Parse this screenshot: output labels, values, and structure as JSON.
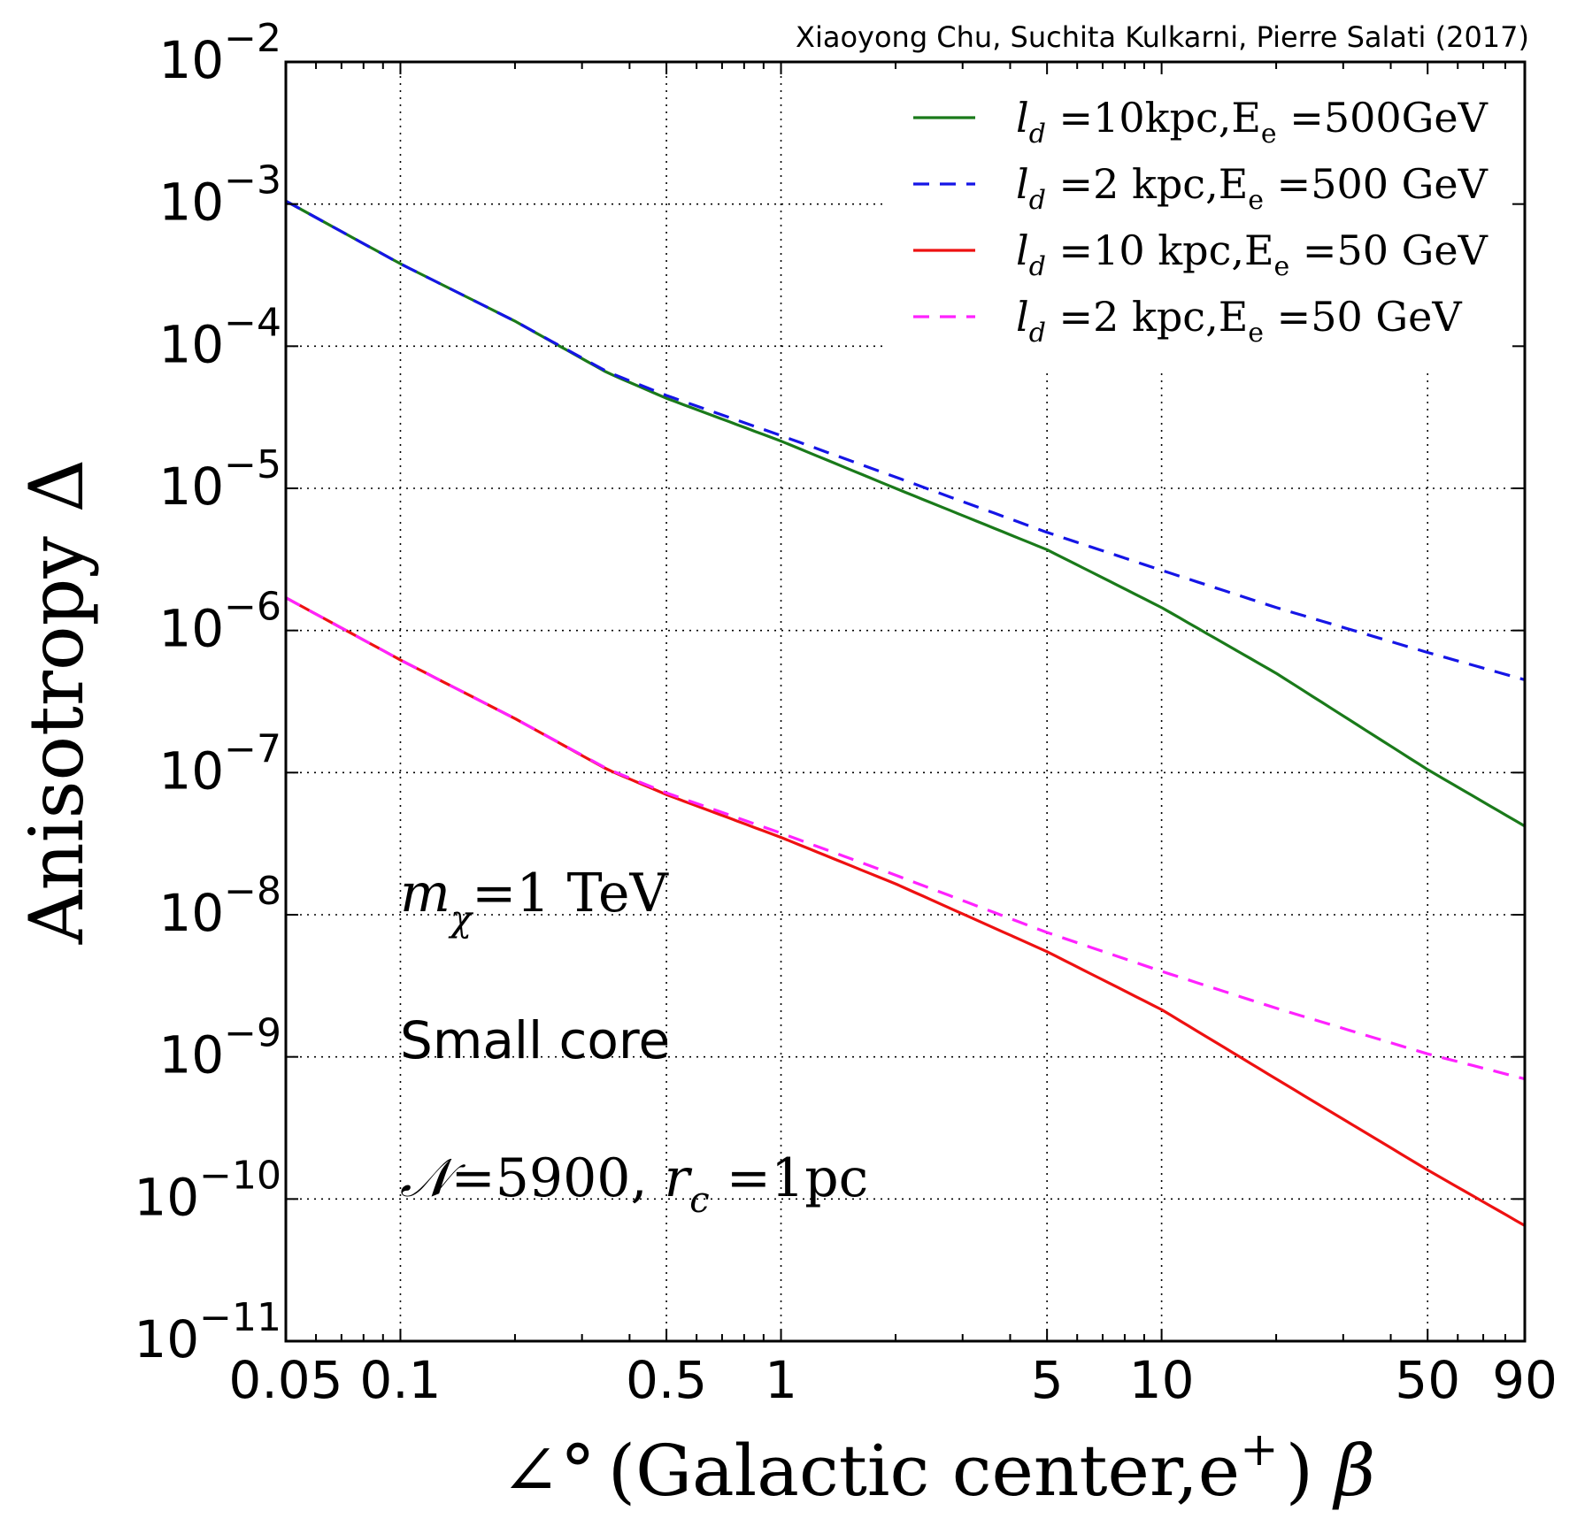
{
  "chart_data": {
    "type": "line",
    "credit": "Xiaoyong Chu, Suchita Kulkarni, Pierre Salati (2017)",
    "xlabel": {
      "prefix": "∠°",
      "text": "(Galactic center,e",
      "sup": "+",
      "close": ")",
      "symbol": "β"
    },
    "ylabel": "Anisotropy Δ",
    "xscale": "log",
    "yscale": "log",
    "xlim": [
      0.05,
      90
    ],
    "ylim": [
      1e-11,
      0.01
    ],
    "x_ticks": [
      {
        "value": 0.05,
        "label": "0.05"
      },
      {
        "value": 0.1,
        "label": "0.1"
      },
      {
        "value": 0.5,
        "label": "0.5"
      },
      {
        "value": 1,
        "label": "1"
      },
      {
        "value": 5,
        "label": "5"
      },
      {
        "value": 10,
        "label": "10"
      },
      {
        "value": 50,
        "label": "50"
      },
      {
        "value": 90,
        "label": "90"
      }
    ],
    "y_ticks": [
      {
        "exp": -2,
        "base": "10",
        "sup": "−2"
      },
      {
        "exp": -3,
        "base": "10",
        "sup": "−3"
      },
      {
        "exp": -4,
        "base": "10",
        "sup": "−4"
      },
      {
        "exp": -5,
        "base": "10",
        "sup": "−5"
      },
      {
        "exp": -6,
        "base": "10",
        "sup": "−6"
      },
      {
        "exp": -7,
        "base": "10",
        "sup": "−7"
      },
      {
        "exp": -8,
        "base": "10",
        "sup": "−8"
      },
      {
        "exp": -9,
        "base": "10",
        "sup": "−9"
      },
      {
        "exp": -10,
        "base": "10",
        "sup": "−10"
      },
      {
        "exp": -11,
        "base": "10",
        "sup": "−11"
      }
    ],
    "grid": true,
    "legend_position": "top-right",
    "series": [
      {
        "name": "l_d =10kpc,E_e =500GeV",
        "legend": {
          "l": "l",
          "d": "d",
          "mid": " =10kpc,E",
          "e": "e",
          "tail": " =500GeV"
        },
        "color": "#1a7a1a",
        "style": "solid",
        "x": [
          0.05,
          0.1,
          0.2,
          0.35,
          0.5,
          1,
          2,
          5,
          10,
          20,
          50,
          90
        ],
        "y": [
          0.00105,
          0.00038,
          0.00015,
          6.5e-05,
          4.3e-05,
          2.15e-05,
          1e-05,
          3.7e-06,
          1.45e-06,
          5e-07,
          1.05e-07,
          4.2e-08
        ]
      },
      {
        "name": "l_d =2 kpc,E_e =500 GeV",
        "legend": {
          "l": "l",
          "d": "d",
          "mid": " =2 kpc,E",
          "e": "e",
          "tail": " =500 GeV"
        },
        "color": "#1515e6",
        "style": "dashed",
        "x": [
          0.05,
          0.1,
          0.2,
          0.35,
          0.5,
          1,
          2,
          5,
          10,
          20,
          50,
          90
        ],
        "y": [
          0.00105,
          0.00038,
          0.00015,
          6.6e-05,
          4.5e-05,
          2.35e-05,
          1.2e-05,
          4.9e-06,
          2.65e-06,
          1.45e-06,
          7e-07,
          4.5e-07
        ]
      },
      {
        "name": "l_d =10 kpc,E_e =50 GeV",
        "legend": {
          "l": "l",
          "d": "d",
          "mid": " =10 kpc,E",
          "e": "e",
          "tail": " =50 GeV"
        },
        "color": "#ee1111",
        "style": "solid",
        "x": [
          0.05,
          0.1,
          0.2,
          0.35,
          0.5,
          1,
          2,
          5,
          10,
          20,
          50,
          90
        ],
        "y": [
          1.7e-06,
          6.2e-07,
          2.4e-07,
          1.05e-07,
          7e-08,
          3.5e-08,
          1.65e-08,
          5.5e-09,
          2.15e-09,
          7e-10,
          1.6e-10,
          6.5e-11
        ]
      },
      {
        "name": "l_d =2 kpc,E_e =50 GeV",
        "legend": {
          "l": "l",
          "d": "d",
          "mid": " =2 kpc,E",
          "e": "e",
          "tail": " =50 GeV"
        },
        "color": "#ff22ff",
        "style": "dashed",
        "x": [
          0.05,
          0.1,
          0.2,
          0.35,
          0.5,
          1,
          2,
          5,
          10,
          20,
          50,
          90
        ],
        "y": [
          1.7e-06,
          6.2e-07,
          2.4e-07,
          1.06e-07,
          7.2e-08,
          3.75e-08,
          1.9e-08,
          7.5e-09,
          4e-09,
          2.2e-09,
          1.05e-09,
          7e-10
        ]
      }
    ],
    "annotations": {
      "mass": {
        "m": "m",
        "chi": "χ",
        "rest": "=1 TeV"
      },
      "profile": "Small core",
      "params": {
        "n": "𝒩",
        "n_rest": "=5900, ",
        "r": "r",
        "c": "c",
        "rest": " =1pc"
      }
    }
  }
}
